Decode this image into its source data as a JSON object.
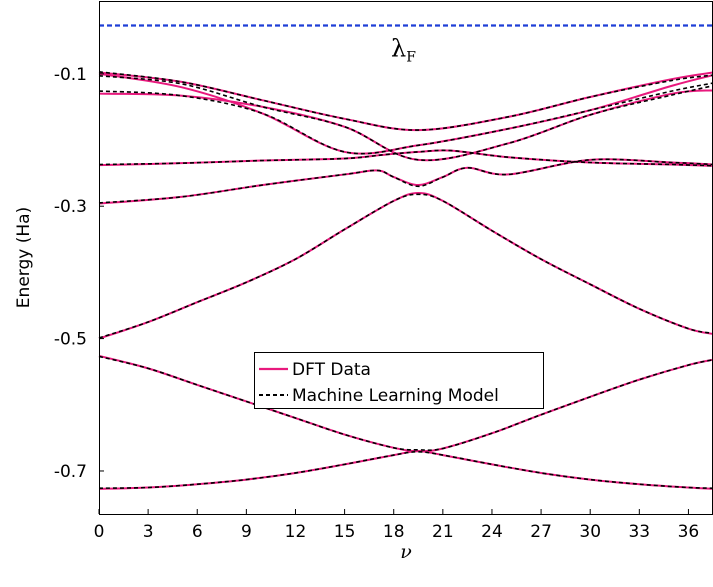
{
  "chart_data": {
    "type": "line",
    "xlabel": "ν",
    "ylabel": "Energy (Ha)",
    "xlim": [
      0,
      37.5
    ],
    "ylim": [
      -0.765,
      0.01
    ],
    "xticks": [
      0,
      3,
      6,
      9,
      12,
      15,
      18,
      21,
      24,
      27,
      30,
      33,
      36
    ],
    "xtick_labels": [
      "0",
      "3",
      "6",
      "9",
      "12",
      "15",
      "18",
      "21",
      "24",
      "27",
      "30",
      "33",
      "36"
    ],
    "yticks": [
      -0.1,
      -0.3,
      -0.5,
      -0.7
    ],
    "ytick_labels": [
      "-0.1",
      "-0.3",
      "-0.5",
      "-0.7"
    ],
    "grid": false,
    "legend_position": "center",
    "fermi_level": {
      "value": -0.027,
      "label": "λ",
      "label_sub": "F",
      "color": "#1f3fd6"
    },
    "series": [
      {
        "name": "DFT Data",
        "color": "#e8197d",
        "style": "solid",
        "bands": [
          {
            "x": [
              0,
              5,
              10,
              15,
              19.5,
              25,
              30,
              35,
              37.5
            ],
            "y": [
              -0.098,
              -0.112,
              -0.14,
              -0.168,
              -0.185,
              -0.165,
              -0.135,
              -0.108,
              -0.098
            ]
          },
          {
            "x": [
              0,
              5,
              10,
              15,
              19.5,
              25,
              30,
              35,
              37.5
            ],
            "y": [
              -0.13,
              -0.133,
              -0.15,
              -0.18,
              -0.23,
              -0.205,
              -0.162,
              -0.13,
              -0.125
            ]
          },
          {
            "x": [
              0,
              5,
              10,
              15,
              19.5,
              25,
              30,
              35,
              37.5
            ],
            "y": [
              -0.1,
              -0.12,
              -0.16,
              -0.218,
              -0.208,
              -0.183,
              -0.155,
              -0.118,
              -0.102
            ]
          },
          {
            "x": [
              0,
              5,
              10,
              15,
              17.5,
              19.5,
              21.5,
              25,
              30,
              35,
              37.5
            ],
            "y": [
              -0.238,
              -0.235,
              -0.231,
              -0.228,
              -0.222,
              -0.218,
              -0.216,
              -0.226,
              -0.234,
              -0.237,
              -0.239
            ]
          },
          {
            "x": [
              0,
              5,
              10,
              15,
              17,
              18,
              19.5,
              21,
              22.5,
              25,
              30,
              35,
              37.5
            ],
            "y": [
              -0.296,
              -0.286,
              -0.268,
              -0.252,
              -0.246,
              -0.256,
              -0.268,
              -0.256,
              -0.242,
              -0.252,
              -0.23,
              -0.234,
              -0.237
            ]
          },
          {
            "x": [
              0,
              3,
              6,
              9,
              12,
              15,
              18,
              19.5,
              21,
              24,
              27,
              30,
              33,
              36,
              37.5
            ],
            "y": [
              -0.5,
              -0.475,
              -0.445,
              -0.415,
              -0.38,
              -0.335,
              -0.292,
              -0.28,
              -0.292,
              -0.337,
              -0.38,
              -0.418,
              -0.455,
              -0.485,
              -0.493
            ]
          },
          {
            "x": [
              0,
              3,
              6,
              9,
              12,
              15,
              18,
              19.5,
              21,
              24,
              27,
              30,
              33,
              36,
              37.5
            ],
            "y": [
              -0.526,
              -0.545,
              -0.57,
              -0.595,
              -0.62,
              -0.645,
              -0.665,
              -0.67,
              -0.666,
              -0.643,
              -0.615,
              -0.588,
              -0.562,
              -0.54,
              -0.532
            ]
          },
          {
            "x": [
              0,
              3,
              6,
              9,
              12,
              15,
              18,
              19.5,
              21,
              24,
              27,
              30,
              33,
              36,
              37.5
            ],
            "y": [
              -0.727,
              -0.725,
              -0.72,
              -0.713,
              -0.703,
              -0.69,
              -0.676,
              -0.67,
              -0.676,
              -0.69,
              -0.703,
              -0.713,
              -0.72,
              -0.725,
              -0.727
            ]
          }
        ]
      },
      {
        "name": "Machine Learning Model",
        "color": "#000000",
        "style": "dashed",
        "bands": [
          {
            "x": [
              0,
              5,
              10,
              15,
              19.5,
              25,
              30,
              35,
              37.5
            ],
            "y": [
              -0.097,
              -0.112,
              -0.14,
              -0.168,
              -0.185,
              -0.165,
              -0.135,
              -0.11,
              -0.102
            ]
          },
          {
            "x": [
              0,
              5,
              10,
              15,
              19.5,
              25,
              30,
              35,
              37.5
            ],
            "y": [
              -0.103,
              -0.115,
              -0.15,
              -0.18,
              -0.23,
              -0.205,
              -0.162,
              -0.132,
              -0.118
            ]
          },
          {
            "x": [
              0,
              5,
              10,
              15,
              19.5,
              25,
              30,
              35,
              37.5
            ],
            "y": [
              -0.126,
              -0.133,
              -0.16,
              -0.218,
              -0.208,
              -0.183,
              -0.155,
              -0.126,
              -0.114
            ]
          },
          {
            "x": [
              0,
              5,
              10,
              15,
              17.5,
              19.5,
              21.5,
              25,
              30,
              35,
              37.5
            ],
            "y": [
              -0.237,
              -0.235,
              -0.231,
              -0.228,
              -0.222,
              -0.218,
              -0.216,
              -0.226,
              -0.234,
              -0.237,
              -0.239
            ]
          },
          {
            "x": [
              0,
              5,
              10,
              15,
              17,
              18,
              19.5,
              21,
              22.5,
              25,
              30,
              35,
              37.5
            ],
            "y": [
              -0.295,
              -0.286,
              -0.268,
              -0.252,
              -0.246,
              -0.256,
              -0.27,
              -0.256,
              -0.242,
              -0.252,
              -0.23,
              -0.234,
              -0.237
            ]
          },
          {
            "x": [
              0,
              3,
              6,
              9,
              12,
              15,
              18,
              19.5,
              21,
              24,
              27,
              30,
              33,
              36,
              37.5
            ],
            "y": [
              -0.499,
              -0.475,
              -0.445,
              -0.415,
              -0.38,
              -0.335,
              -0.292,
              -0.282,
              -0.292,
              -0.337,
              -0.38,
              -0.418,
              -0.455,
              -0.485,
              -0.492
            ]
          },
          {
            "x": [
              0,
              3,
              6,
              9,
              12,
              15,
              18,
              19.5,
              21,
              24,
              27,
              30,
              33,
              36,
              37.5
            ],
            "y": [
              -0.527,
              -0.545,
              -0.57,
              -0.595,
              -0.62,
              -0.645,
              -0.665,
              -0.668,
              -0.666,
              -0.643,
              -0.615,
              -0.588,
              -0.562,
              -0.54,
              -0.532
            ]
          },
          {
            "x": [
              0,
              3,
              6,
              9,
              12,
              15,
              18,
              19.5,
              21,
              24,
              27,
              30,
              33,
              36,
              37.5
            ],
            "y": [
              -0.726,
              -0.725,
              -0.72,
              -0.713,
              -0.703,
              -0.69,
              -0.676,
              -0.671,
              -0.676,
              -0.69,
              -0.703,
              -0.713,
              -0.72,
              -0.725,
              -0.726
            ]
          }
        ]
      }
    ]
  }
}
